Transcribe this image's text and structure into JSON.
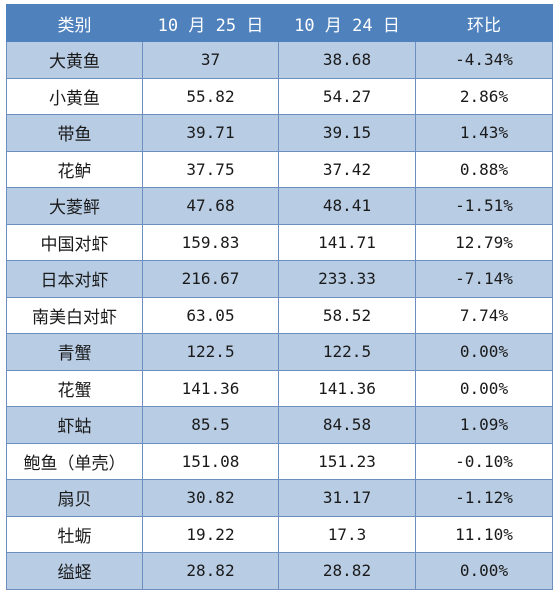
{
  "table": {
    "headers": [
      "类别",
      "10 月 25 日",
      "10 月 24 日",
      "环比"
    ],
    "rows": [
      {
        "name": "大黄鱼",
        "oct25": "37",
        "oct24": "38.68",
        "change": "-4.34%"
      },
      {
        "name": "小黄鱼",
        "oct25": "55.82",
        "oct24": "54.27",
        "change": "2.86%"
      },
      {
        "name": "带鱼",
        "oct25": "39.71",
        "oct24": "39.15",
        "change": "1.43%"
      },
      {
        "name": "花鲈",
        "oct25": "37.75",
        "oct24": "37.42",
        "change": "0.88%"
      },
      {
        "name": "大菱鲆",
        "oct25": "47.68",
        "oct24": "48.41",
        "change": "-1.51%"
      },
      {
        "name": "中国对虾",
        "oct25": "159.83",
        "oct24": "141.71",
        "change": "12.79%"
      },
      {
        "name": "日本对虾",
        "oct25": "216.67",
        "oct24": "233.33",
        "change": "-7.14%"
      },
      {
        "name": "南美白对虾",
        "oct25": "63.05",
        "oct24": "58.52",
        "change": "7.74%"
      },
      {
        "name": "青蟹",
        "oct25": "122.5",
        "oct24": "122.5",
        "change": "0.00%"
      },
      {
        "name": "花蟹",
        "oct25": "141.36",
        "oct24": "141.36",
        "change": "0.00%"
      },
      {
        "name": "虾蛄",
        "oct25": "85.5",
        "oct24": "84.58",
        "change": "1.09%"
      },
      {
        "name": "鲍鱼（单壳）",
        "oct25": "151.08",
        "oct24": "151.23",
        "change": "-0.10%"
      },
      {
        "name": "扇贝",
        "oct25": "30.82",
        "oct24": "31.17",
        "change": "-1.12%"
      },
      {
        "name": "牡蛎",
        "oct25": "19.22",
        "oct24": "17.3",
        "change": "11.10%"
      },
      {
        "name": "缢蛏",
        "oct25": "28.82",
        "oct24": "28.82",
        "change": "0.00%"
      }
    ]
  },
  "colors": {
    "header_bg": "#4f81bd",
    "band_bg": "#b8cce4",
    "plain_bg": "#ffffff",
    "border": "#6d8fbf"
  }
}
